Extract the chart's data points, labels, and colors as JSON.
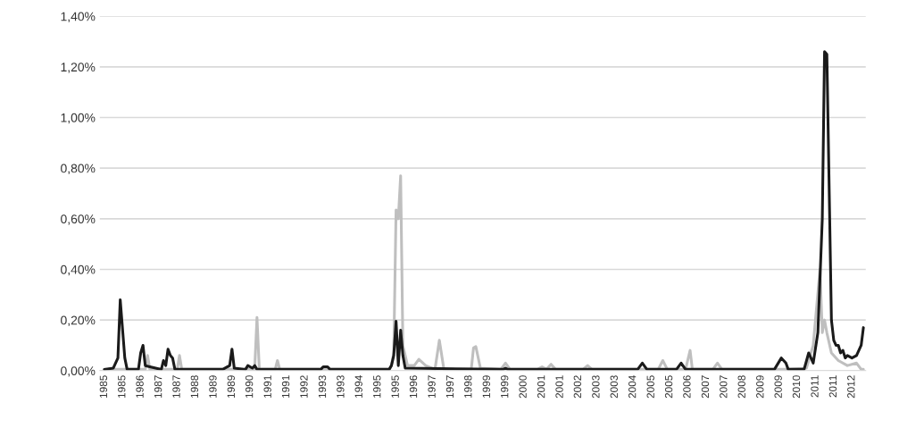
{
  "chart_data": {
    "type": "line",
    "series": [
      {
        "color": "#bfbfbf",
        "x": [
          "1985-01",
          "1986-07",
          "1986-08",
          "1986-09",
          "1987-09",
          "1987-10",
          "1987-11",
          "1990-07",
          "1990-08",
          "1990-09",
          "1991-04",
          "1991-05",
          "1991-06",
          "1995-06",
          "1995-07",
          "1995-08",
          "1995-09",
          "1995-10",
          "1995-11",
          "1995-12",
          "1996-01",
          "1996-02",
          "1996-05",
          "1996-07",
          "1996-10",
          "1997-02",
          "1997-04",
          "1997-06",
          "1998-06",
          "1998-07",
          "1998-08",
          "1998-10",
          "1999-07",
          "1999-09",
          "1999-11",
          "2000-11",
          "2001-01",
          "2001-03",
          "2001-05",
          "2001-07",
          "2002-07",
          "2002-09",
          "2002-11",
          "2005-04",
          "2005-06",
          "2005-08",
          "2006-04",
          "2006-06",
          "2006-07",
          "2007-04",
          "2007-06",
          "2007-08",
          "2010-01",
          "2010-09",
          "2010-12",
          "2011-03",
          "2011-04",
          "2011-05",
          "2011-06",
          "2011-08",
          "2011-11",
          "2012-03",
          "2012-07",
          "2012-09",
          "2012-10"
        ],
        "values": [
          0.005,
          0.005,
          0.06,
          0.005,
          0.005,
          0.06,
          0.005,
          0.005,
          0.21,
          0.005,
          0.005,
          0.04,
          0.005,
          0.005,
          0.02,
          0.07,
          0.635,
          0.6,
          0.77,
          0.1,
          0.06,
          0.02,
          0.02,
          0.045,
          0.02,
          0.005,
          0.12,
          0.005,
          0.005,
          0.09,
          0.095,
          0.01,
          0.005,
          0.03,
          0.005,
          0.005,
          0.015,
          0.005,
          0.025,
          0.005,
          0.005,
          0.02,
          0.005,
          0.005,
          0.04,
          0.005,
          0.005,
          0.08,
          0.005,
          0.005,
          0.03,
          0.005,
          0.005,
          0.01,
          0.1,
          0.4,
          0.15,
          0.2,
          0.15,
          0.07,
          0.04,
          0.02,
          0.03,
          0.005,
          0.005
        ]
      },
      {
        "color": "#1a1a1a",
        "x": [
          "1985-01",
          "1985-05",
          "1985-07",
          "1985-08",
          "1985-10",
          "1985-11",
          "1986-04",
          "1986-05",
          "1986-06",
          "1986-07",
          "1987-02",
          "1987-03",
          "1987-04",
          "1987-05",
          "1987-06",
          "1987-07",
          "1987-08",
          "1989-05",
          "1989-08",
          "1989-09",
          "1989-10",
          "1990-03",
          "1990-04",
          "1990-06",
          "1990-07",
          "1990-08",
          "1992-12",
          "1993-01",
          "1993-03",
          "1993-04",
          "1995-06",
          "1995-07",
          "1995-08",
          "1995-09",
          "1995-10",
          "1995-11",
          "1995-12",
          "1996-01",
          "1999-08",
          "1999-09",
          "1999-10",
          "2004-07",
          "2004-09",
          "2004-11",
          "2005-12",
          "2006-02",
          "2006-04",
          "2009-07",
          "2009-10",
          "2009-12",
          "2010-01",
          "2010-08",
          "2010-10",
          "2010-12",
          "2011-02",
          "2011-04",
          "2011-05",
          "2011-06",
          "2011-08",
          "2011-09",
          "2011-10",
          "2011-11",
          "2011-12",
          "2012-01",
          "2012-02",
          "2012-03",
          "2012-05",
          "2012-07",
          "2012-09",
          "2012-10"
        ],
        "values": [
          0.005,
          0.01,
          0.05,
          0.28,
          0.05,
          0.005,
          0.005,
          0.07,
          0.1,
          0.02,
          0.005,
          0.04,
          0.02,
          0.085,
          0.06,
          0.05,
          0.005,
          0.005,
          0.02,
          0.085,
          0.01,
          0.005,
          0.02,
          0.01,
          0.02,
          0.005,
          0.005,
          0.015,
          0.015,
          0.005,
          0.005,
          0.02,
          0.06,
          0.195,
          0.02,
          0.16,
          0.06,
          0.01,
          0.005,
          0.01,
          0.005,
          0.005,
          0.03,
          0.005,
          0.005,
          0.03,
          0.005,
          0.005,
          0.05,
          0.03,
          0.005,
          0.005,
          0.07,
          0.03,
          0.15,
          0.6,
          1.26,
          1.25,
          0.2,
          0.12,
          0.1,
          0.1,
          0.07,
          0.08,
          0.05,
          0.06,
          0.05,
          0.06,
          0.1,
          0.17
        ]
      }
    ],
    "xlim": [
      "1984-11",
      "2012-11"
    ],
    "xticks": [
      {
        "value": "1985-01",
        "label": "1985"
      },
      {
        "value": "1985-09",
        "label": "1985"
      },
      {
        "value": "1986-05",
        "label": "1986"
      },
      {
        "value": "1987-01",
        "label": "1987"
      },
      {
        "value": "1987-09",
        "label": "1987"
      },
      {
        "value": "1988-05",
        "label": "1988"
      },
      {
        "value": "1989-01",
        "label": "1989"
      },
      {
        "value": "1989-09",
        "label": "1989"
      },
      {
        "value": "1990-05",
        "label": "1990"
      },
      {
        "value": "1991-01",
        "label": "1991"
      },
      {
        "value": "1991-09",
        "label": "1991"
      },
      {
        "value": "1992-05",
        "label": "1992"
      },
      {
        "value": "1993-01",
        "label": "1993"
      },
      {
        "value": "1993-09",
        "label": "1993"
      },
      {
        "value": "1994-05",
        "label": "1994"
      },
      {
        "value": "1995-01",
        "label": "1995"
      },
      {
        "value": "1995-09",
        "label": "1995"
      },
      {
        "value": "1996-05",
        "label": "1996"
      },
      {
        "value": "1997-01",
        "label": "1997"
      },
      {
        "value": "1997-09",
        "label": "1997"
      },
      {
        "value": "1998-05",
        "label": "1998"
      },
      {
        "value": "1999-01",
        "label": "1999"
      },
      {
        "value": "1999-09",
        "label": "1999"
      },
      {
        "value": "2000-05",
        "label": "2000"
      },
      {
        "value": "2001-01",
        "label": "2001"
      },
      {
        "value": "2001-09",
        "label": "2001"
      },
      {
        "value": "2002-05",
        "label": "2002"
      },
      {
        "value": "2003-01",
        "label": "2003"
      },
      {
        "value": "2003-09",
        "label": "2003"
      },
      {
        "value": "2004-05",
        "label": "2004"
      },
      {
        "value": "2005-01",
        "label": "2005"
      },
      {
        "value": "2005-09",
        "label": "2005"
      },
      {
        "value": "2006-05",
        "label": "2006"
      },
      {
        "value": "2007-01",
        "label": "2007"
      },
      {
        "value": "2007-09",
        "label": "2007"
      },
      {
        "value": "2008-05",
        "label": "2008"
      },
      {
        "value": "2009-01",
        "label": "2009"
      },
      {
        "value": "2009-09",
        "label": "2009"
      },
      {
        "value": "2010-05",
        "label": "2010"
      },
      {
        "value": "2011-01",
        "label": "2011"
      },
      {
        "value": "2011-09",
        "label": "2011"
      },
      {
        "value": "2012-05",
        "label": "2012"
      }
    ],
    "ylim": [
      0,
      1.4
    ],
    "yticks": [
      {
        "value": 0,
        "label": "0,00%"
      },
      {
        "value": 0.2,
        "label": "0,20%"
      },
      {
        "value": 0.4,
        "label": "0,40%"
      },
      {
        "value": 0.6,
        "label": "0,60%"
      },
      {
        "value": 0.8,
        "label": "0,80%"
      },
      {
        "value": 1.0,
        "label": "1,00%"
      },
      {
        "value": 1.2,
        "label": "1,20%"
      },
      {
        "value": 1.4,
        "label": "1,40%"
      }
    ],
    "grid": "y",
    "marker": "none",
    "line_style": "solid"
  }
}
